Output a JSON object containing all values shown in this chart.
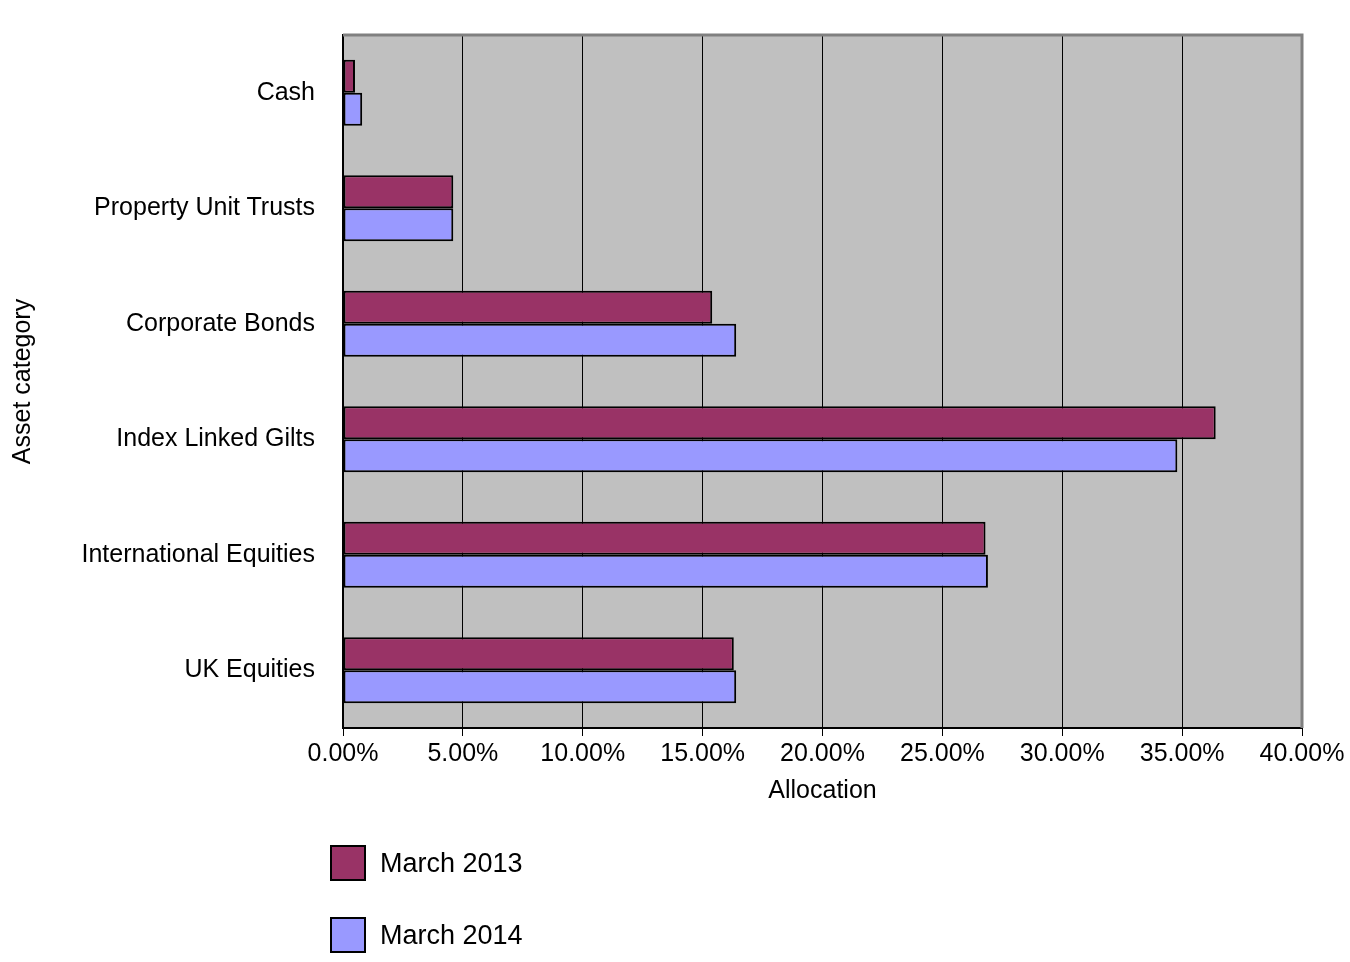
{
  "chart_data": {
    "type": "bar",
    "orientation": "horizontal",
    "xlabel": "Allocation",
    "ylabel": "Asset category",
    "categories": [
      "Cash",
      "Property Unit Trusts",
      "Corporate Bonds",
      "Index Linked Gilts",
      "International Equities",
      "UK Equities"
    ],
    "series": [
      {
        "name": "March 2013",
        "color": "#993366",
        "values": [
          0.5,
          4.6,
          15.4,
          36.4,
          26.8,
          16.3
        ]
      },
      {
        "name": "March 2014",
        "color": "#9999ff",
        "values": [
          0.8,
          4.6,
          16.4,
          34.8,
          26.9,
          16.4
        ]
      }
    ],
    "xlim": [
      0,
      40
    ],
    "xticks": [
      {
        "value": 0,
        "label": "0.00%"
      },
      {
        "value": 5,
        "label": "5.00%"
      },
      {
        "value": 10,
        "label": "10.00%"
      },
      {
        "value": 15,
        "label": "15.00%"
      },
      {
        "value": 20,
        "label": "20.00%"
      },
      {
        "value": 25,
        "label": "25.00%"
      },
      {
        "value": 30,
        "label": "30.00%"
      },
      {
        "value": 35,
        "label": "35.00%"
      },
      {
        "value": 40,
        "label": "40.00%"
      }
    ],
    "grid": "x",
    "legend": "bottom left"
  }
}
